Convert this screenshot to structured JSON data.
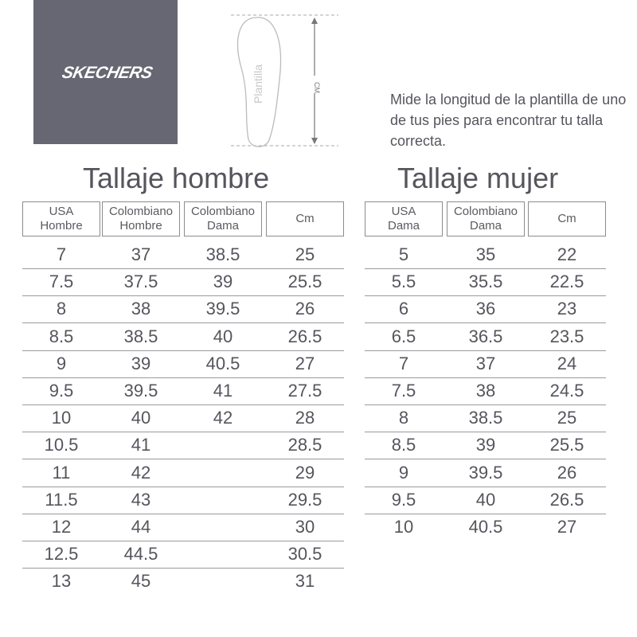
{
  "brand": "SKECHERS",
  "diagram": {
    "insole_label": "Plantilla",
    "measure_label": "CM"
  },
  "description": "Mide la longitud de la plantilla de uno de tus pies para encontrar tu talla correcta.",
  "men": {
    "title": "Tallaje hombre",
    "headers": [
      "USA\nHombre",
      "Colombiano\nHombre",
      "Colombiano\nDama",
      "Cm"
    ],
    "rows": [
      [
        "7",
        "37",
        "38.5",
        "25"
      ],
      [
        "7.5",
        "37.5",
        "39",
        "25.5"
      ],
      [
        "8",
        "38",
        "39.5",
        "26"
      ],
      [
        "8.5",
        "38.5",
        "40",
        "26.5"
      ],
      [
        "9",
        "39",
        "40.5",
        "27"
      ],
      [
        "9.5",
        "39.5",
        "41",
        "27.5"
      ],
      [
        "10",
        "40",
        "42",
        "28"
      ],
      [
        "10.5",
        "41",
        "",
        "28.5"
      ],
      [
        "11",
        "42",
        "",
        "29"
      ],
      [
        "11.5",
        "43",
        "",
        "29.5"
      ],
      [
        "12",
        "44",
        "",
        "30"
      ],
      [
        "12.5",
        "44.5",
        "",
        "30.5"
      ],
      [
        "13",
        "45",
        "",
        "31"
      ]
    ]
  },
  "women": {
    "title": "Tallaje mujer",
    "headers": [
      "USA\nDama",
      "Colombiano\nDama",
      "Cm"
    ],
    "rows": [
      [
        "5",
        "35",
        "22"
      ],
      [
        "5.5",
        "35.5",
        "22.5"
      ],
      [
        "6",
        "36",
        "23"
      ],
      [
        "6.5",
        "36.5",
        "23.5"
      ],
      [
        "7",
        "37",
        "24"
      ],
      [
        "7.5",
        "38",
        "24.5"
      ],
      [
        "8",
        "38.5",
        "25"
      ],
      [
        "8.5",
        "39",
        "25.5"
      ],
      [
        "9",
        "39.5",
        "26"
      ],
      [
        "9.5",
        "40",
        "26.5"
      ],
      [
        "10",
        "40.5",
        "27"
      ]
    ]
  }
}
